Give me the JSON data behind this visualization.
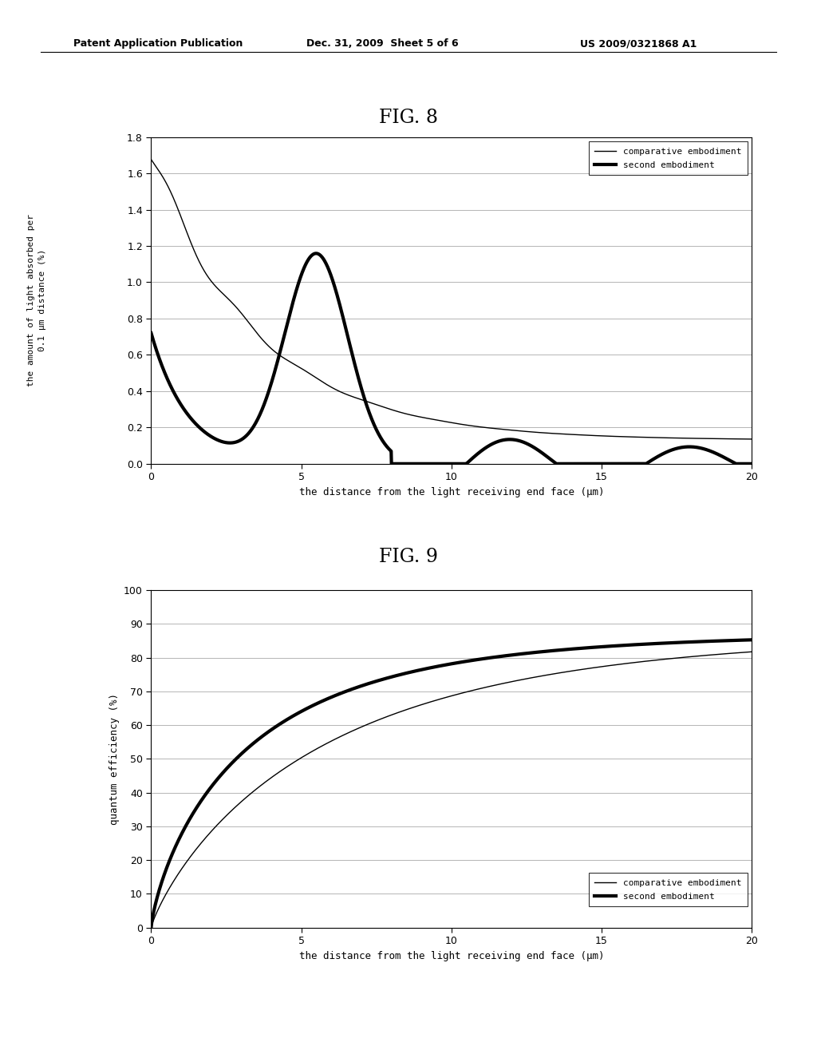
{
  "header_left": "Patent Application Publication",
  "header_mid": "Dec. 31, 2009  Sheet 5 of 6",
  "header_right": "US 2009/0321868 A1",
  "fig8_title": "FIG. 8",
  "fig9_title": "FIG. 9",
  "fig8_ylabel_line1": "the amount of light absorbed per",
  "fig8_ylabel_line2": "0.1 μm distance (%)",
  "fig8_xlabel": "the distance from the light receiving end face (μm)",
  "fig8_xlim": [
    0,
    20
  ],
  "fig8_ylim": [
    0,
    1.8
  ],
  "fig8_yticks": [
    0,
    0.2,
    0.4,
    0.6,
    0.8,
    1.0,
    1.2,
    1.4,
    1.6,
    1.8
  ],
  "fig8_xticks": [
    0,
    5,
    10,
    15,
    20
  ],
  "fig9_ylabel": "quantum efficiency (%)",
  "fig9_xlabel": "the distance from the light receiving end face (μm)",
  "fig9_xlim": [
    0,
    20
  ],
  "fig9_ylim": [
    0,
    100
  ],
  "fig9_yticks": [
    0,
    10,
    20,
    30,
    40,
    50,
    60,
    70,
    80,
    90,
    100
  ],
  "fig9_xticks": [
    0,
    5,
    10,
    15,
    20
  ],
  "legend_labels": [
    "comparative embodiment",
    "second embodiment"
  ],
  "line_thin_color": "#000000",
  "line_thick_color": "#000000",
  "background_color": "#ffffff",
  "header_fontsize": 9,
  "title_fontsize": 17,
  "tick_fontsize": 9,
  "label_fontsize": 9,
  "legend_fontsize": 8,
  "thin_lw": 1.0,
  "thick_lw": 3.0,
  "grid_color": "#aaaaaa",
  "grid_lw": 0.6
}
